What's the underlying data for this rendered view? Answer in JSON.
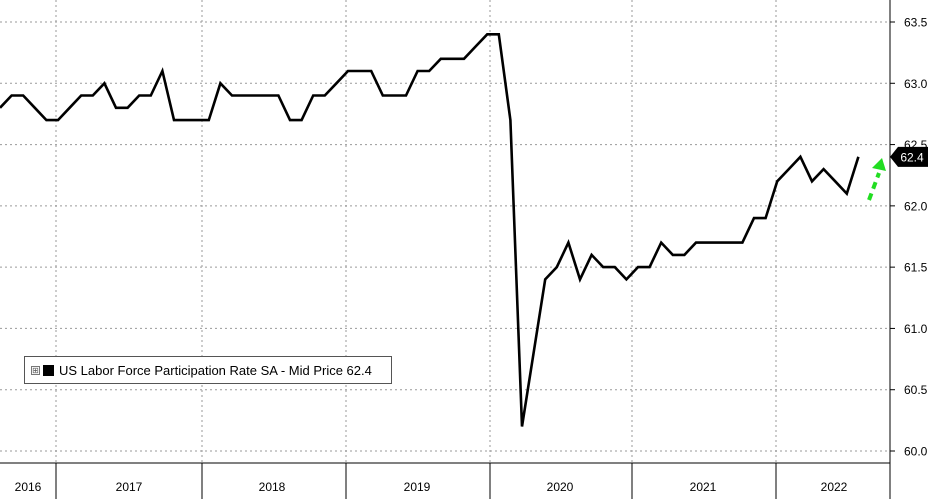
{
  "chart_data": {
    "type": "line",
    "title": "",
    "legend": {
      "label": "US Labor Force Participation Rate SA - Mid Price 62.4",
      "placement": "bottom-left",
      "expand_glyph": "⊞"
    },
    "ylim": [
      60.0,
      63.5
    ],
    "yticks": [
      "63.5",
      "63.0",
      "62.5",
      "62.0",
      "61.5",
      "61.0",
      "60.5",
      "60.0"
    ],
    "year_labels": [
      "2016",
      "2017",
      "2018",
      "2019",
      "2020",
      "2021",
      "2022"
    ],
    "last_value_label": "62.4",
    "grid": true,
    "colors": {
      "line": "#000000",
      "grid": "#9a9a9a",
      "arrow": "#22dd22",
      "badge": "#000000"
    },
    "annotation": "green-dashed-up-arrow",
    "series": [
      {
        "values": [
          62.8,
          62.9,
          62.9,
          62.8,
          62.7,
          62.7,
          62.8,
          62.9,
          62.9,
          63.0,
          62.8,
          62.8,
          62.9,
          62.9,
          63.1,
          62.7,
          62.7,
          62.7,
          62.7,
          63.0,
          62.9,
          62.9,
          62.9,
          62.9,
          62.9,
          62.7,
          62.7,
          62.9,
          62.9,
          63.0,
          63.1,
          63.1,
          63.1,
          62.9,
          62.9,
          62.9,
          63.1,
          63.1,
          63.2,
          63.2,
          63.2,
          63.3,
          63.4,
          63.4,
          62.7,
          60.2,
          60.8,
          61.4,
          61.5,
          61.7,
          61.4,
          61.6,
          61.5,
          61.5,
          61.4,
          61.5,
          61.5,
          61.7,
          61.6,
          61.6,
          61.7,
          61.7,
          61.7,
          61.7,
          61.7,
          61.9,
          61.9,
          62.2,
          62.3,
          62.4,
          62.2,
          62.3,
          62.2,
          62.1,
          62.4
        ]
      }
    ]
  }
}
